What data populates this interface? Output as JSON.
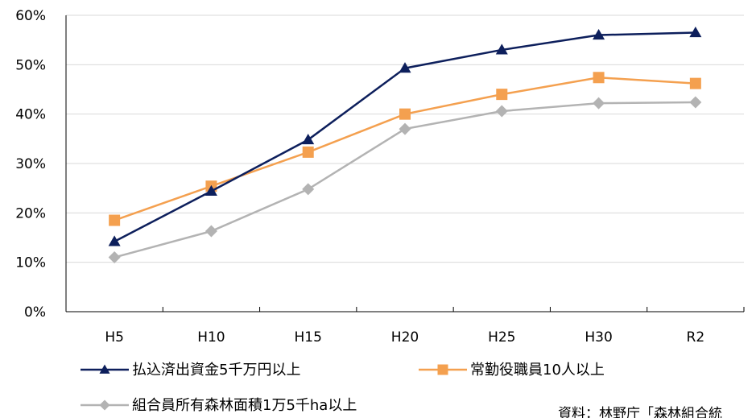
{
  "chart_data": {
    "type": "line",
    "categories": [
      "H5",
      "H10",
      "H15",
      "H20",
      "H25",
      "H30",
      "R2"
    ],
    "y_ticks": [
      "0%",
      "10%",
      "20%",
      "30%",
      "40%",
      "50%",
      "60%"
    ],
    "ylim": [
      0,
      60
    ],
    "grid": "horizontal",
    "legend_position": "bottom",
    "series": [
      {
        "name": "払込済出資金5千万円以上",
        "values": [
          14.2,
          24.4,
          34.8,
          49.3,
          53.0,
          56.0,
          56.5
        ],
        "color": "#0d1f5c",
        "marker": "triangle"
      },
      {
        "name": "常勤役職員10人以上",
        "values": [
          18.5,
          25.4,
          32.3,
          40.0,
          44.0,
          47.4,
          46.2
        ],
        "color": "#f4a04f",
        "marker": "square"
      },
      {
        "name": "組合員所有森林面積1万5千ha以上",
        "values": [
          11.0,
          16.3,
          24.8,
          37.0,
          40.6,
          42.2,
          42.4
        ],
        "color": "#b3b3b3",
        "marker": "diamond"
      }
    ],
    "source": "資料：林野庁「森林組合統"
  }
}
